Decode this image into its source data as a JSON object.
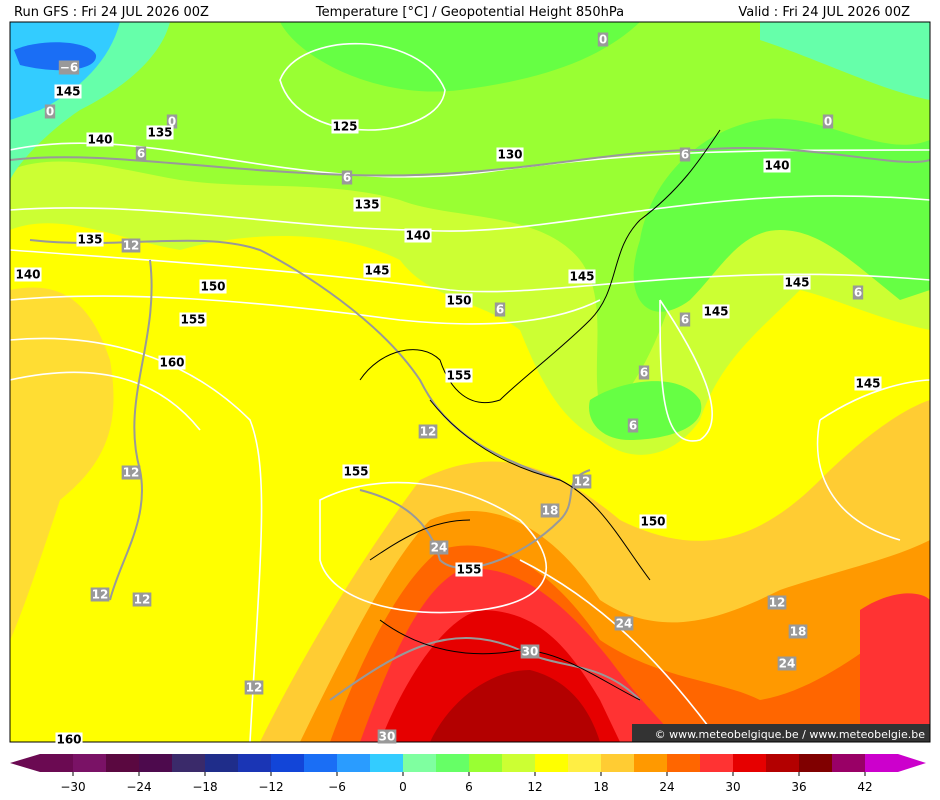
{
  "header": {
    "run": "Run GFS : Fri 24 JUL 2026 00Z",
    "title": "Temperature [°C] / Geopotential Height 850hPa",
    "valid": "Valid : Fri 24 JUL 2026 00Z"
  },
  "height_labels": [
    "145",
    "140",
    "135",
    "125",
    "130",
    "135",
    "135",
    "140",
    "140",
    "145",
    "150",
    "150",
    "155",
    "160",
    "145",
    "140",
    "145",
    "145",
    "145",
    "155",
    "155",
    "150",
    "155",
    "160"
  ],
  "temperature_labels": [
    "−6",
    "0",
    "0",
    "0",
    "0",
    "6",
    "6",
    "6",
    "12",
    "6",
    "6",
    "6",
    "6",
    "6",
    "12",
    "12",
    "12",
    "18",
    "24",
    "12",
    "12",
    "12",
    "18",
    "24",
    "24",
    "30",
    "12",
    "30"
  ],
  "colorbar": {
    "colors": [
      "#6b0a52",
      "#7a1266",
      "#5a0840",
      "#4d0a4d",
      "#3a2a6a",
      "#1f2d8a",
      "#1a35b5",
      "#1245d8",
      "#1a6ef5",
      "#2a9cff",
      "#33ccff",
      "#7fffa0",
      "#66ff66",
      "#99ff33",
      "#ccff33",
      "#ffff00",
      "#ffee44",
      "#ffcc33",
      "#ff9900",
      "#ff6600",
      "#ff3333",
      "#e60000",
      "#b30000",
      "#800000",
      "#990066",
      "#cc00cc"
    ],
    "tick_labels": [
      "−30",
      "−24",
      "−18",
      "−12",
      "−6",
      "0",
      "6",
      "12",
      "18",
      "24",
      "30",
      "36",
      "42"
    ]
  },
  "footer": {
    "watermark": "© www.meteobelgique.be / www.meteobelgie.be"
  }
}
